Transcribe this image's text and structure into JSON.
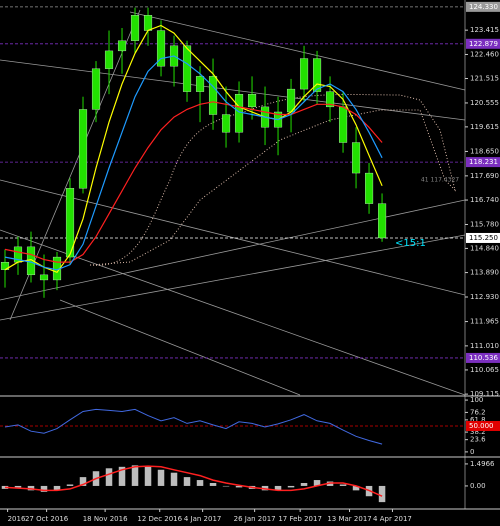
{
  "chart_data": [
    {
      "type": "candlestick",
      "categories": [
        null,
        null,
        null,
        null,
        null,
        null,
        null,
        null,
        null,
        null,
        null,
        null,
        null,
        null,
        null,
        null,
        null,
        null,
        null,
        null,
        null,
        null,
        null,
        null,
        null,
        null,
        null,
        null,
        null,
        null
      ],
      "open": [
        114.0,
        114.3,
        114.9,
        113.8,
        113.6,
        114.5,
        117.2,
        120.3,
        121.9,
        122.6,
        123.0,
        124.0,
        123.4,
        122.0,
        122.8,
        121.0,
        121.6,
        120.1,
        119.4,
        120.9,
        120.4,
        119.6,
        120.2,
        121.1,
        122.3,
        121.0,
        120.4,
        119.0,
        117.8,
        116.6
      ],
      "high": [
        114.8,
        115.3,
        115.5,
        114.6,
        114.7,
        117.6,
        120.8,
        122.2,
        123.4,
        123.5,
        124.3,
        124.3,
        123.8,
        123.2,
        123.0,
        122.0,
        122.3,
        121.2,
        121.4,
        121.6,
        121.2,
        120.8,
        121.5,
        122.8,
        122.6,
        121.6,
        121.0,
        119.6,
        118.2,
        117.0
      ],
      "low": [
        113.3,
        113.8,
        113.5,
        112.9,
        113.2,
        114.2,
        117.0,
        119.8,
        120.9,
        121.7,
        122.5,
        122.8,
        121.6,
        121.2,
        120.6,
        119.8,
        119.5,
        118.8,
        119.0,
        119.9,
        118.9,
        118.5,
        119.4,
        120.6,
        120.5,
        119.8,
        118.6,
        117.2,
        116.2,
        115.1
      ],
      "close": [
        114.3,
        114.9,
        113.8,
        113.6,
        114.5,
        117.2,
        120.3,
        121.9,
        122.6,
        123.0,
        124.0,
        123.4,
        122.0,
        122.8,
        121.0,
        121.6,
        120.1,
        119.4,
        120.9,
        120.4,
        119.6,
        120.2,
        121.1,
        122.3,
        121.0,
        120.4,
        119.0,
        117.8,
        116.6,
        115.25
      ],
      "up_color": "#22e000",
      "down_color": "#22e000",
      "series": [
        {
          "color": "#ffff00",
          "values": [
            114.0,
            114.3,
            114.4,
            114.1,
            113.9,
            114.6,
            116.0,
            118.0,
            119.8,
            121.3,
            122.5,
            123.4,
            123.6,
            123.3,
            122.7,
            122.2,
            121.7,
            121.0,
            120.4,
            120.2,
            120.0,
            119.9,
            120.2,
            120.8,
            121.3,
            121.2,
            120.7,
            119.7,
            118.5,
            117.3
          ]
        },
        {
          "color": "#ff2020",
          "values": [
            114.8,
            114.7,
            114.6,
            114.4,
            114.3,
            114.3,
            114.6,
            115.3,
            116.2,
            117.1,
            118.0,
            118.8,
            119.5,
            120.0,
            120.3,
            120.5,
            120.6,
            120.5,
            120.4,
            120.3,
            120.2,
            120.1,
            120.1,
            120.3,
            120.5,
            120.5,
            120.4,
            120.1,
            119.6,
            119.0
          ]
        },
        {
          "color": "#1e9bff",
          "values": [
            114.5,
            114.4,
            114.3,
            114.1,
            114.0,
            114.2,
            115.0,
            116.5,
            118.0,
            119.4,
            120.8,
            121.8,
            122.3,
            122.4,
            122.1,
            121.7,
            121.2,
            120.6,
            120.2,
            120.1,
            120.0,
            119.9,
            120.1,
            120.6,
            121.1,
            121.3,
            121.0,
            120.3,
            119.4,
            118.4
          ]
        }
      ],
      "xlim": [
        -0.385,
        35.38
      ],
      "xticks": [
        {
          "value": 0.2,
          "label": "2016"
        },
        {
          "value": 3.2,
          "label": "27 Oct 2016"
        },
        {
          "value": 7.7,
          "label": "18 Nov 2016"
        },
        {
          "value": 11.9,
          "label": "12 Dec 2016"
        },
        {
          "value": 15.2,
          "label": "4 Jan 2017"
        },
        {
          "value": 19.2,
          "label": "26 Jan 2017"
        },
        {
          "value": 22.7,
          "label": "17 Feb 2017"
        },
        {
          "value": 26.5,
          "label": "13 Mar 2017"
        },
        {
          "value": 29.8,
          "label": "4 Apr 2017"
        }
      ],
      "ylim": [
        109.08,
        124.6
      ],
      "yticks": [
        123.415,
        {
          "value": 122.46,
          "label": "122.460"
        },
        121.515,
        120.555,
        119.615,
        {
          "value": 118.65,
          "label": "118.650"
        },
        {
          "value": 117.69,
          "label": "117.690"
        },
        {
          "value": 116.74,
          "label": "116.740"
        },
        {
          "value": 115.78,
          "label": "115.780"
        },
        {
          "value": 114.84,
          "label": "114.840"
        },
        {
          "value": 113.89,
          "label": "113.890"
        },
        {
          "value": 112.93,
          "label": "112.930"
        },
        111.965,
        {
          "value": 111.01,
          "label": "111.010"
        },
        110.065,
        109.115
      ],
      "levels": [
        {
          "value": 124.33,
          "label": "124.330",
          "color": "#9a9a9a"
        },
        {
          "value": 122.879,
          "label": "122.879",
          "color": "#7b2fbf"
        },
        {
          "value": 118.231,
          "label": "118.231",
          "color": "#7b2fbf"
        },
        {
          "value": 115.25,
          "label": "115.250",
          "color": "#ffffff"
        },
        {
          "value": 110.536,
          "label": "110.536",
          "color": "#7b2fbf"
        }
      ],
      "annotations": [
        "<15:1",
        "41 117.4327"
      ]
    },
    {
      "type": "line",
      "values": [
        48,
        52,
        40,
        36,
        45,
        62,
        78,
        82,
        80,
        78,
        82,
        70,
        60,
        66,
        55,
        60,
        52,
        45,
        58,
        55,
        48,
        54,
        62,
        72,
        60,
        55,
        42,
        30,
        22,
        15
      ],
      "color": "#4169e1",
      "ylim": [
        -6,
        104
      ],
      "yticks": [
        100,
        76.2,
        61.8,
        38.2,
        23.6,
        0
      ],
      "levels": [
        {
          "value": 50,
          "label": "50.000",
          "color": "#e00000"
        }
      ]
    },
    {
      "type": "bar",
      "values": [
        -0.2,
        -0.1,
        -0.3,
        -0.4,
        -0.3,
        0.1,
        0.6,
        1.0,
        1.2,
        1.3,
        1.4,
        1.3,
        1.1,
        0.9,
        0.6,
        0.4,
        0.2,
        0.0,
        -0.1,
        -0.2,
        -0.3,
        -0.3,
        -0.1,
        0.2,
        0.4,
        0.3,
        0.1,
        -0.3,
        -0.7,
        -1.1
      ],
      "color": "#bdbdbd",
      "line_values": [
        -0.1,
        -0.15,
        -0.2,
        -0.3,
        -0.3,
        -0.2,
        0.1,
        0.5,
        0.8,
        1.1,
        1.3,
        1.35,
        1.3,
        1.1,
        0.9,
        0.7,
        0.4,
        0.2,
        0.05,
        -0.1,
        -0.2,
        -0.3,
        -0.3,
        -0.2,
        0.0,
        0.2,
        0.2,
        0.0,
        -0.3,
        -0.7
      ],
      "line_color": "#ff2020",
      "ylim": [
        -1.5,
        1.9
      ],
      "yticks": [
        1.4966,
        {
          "value": 0,
          "label": "0.00"
        }
      ]
    }
  ]
}
